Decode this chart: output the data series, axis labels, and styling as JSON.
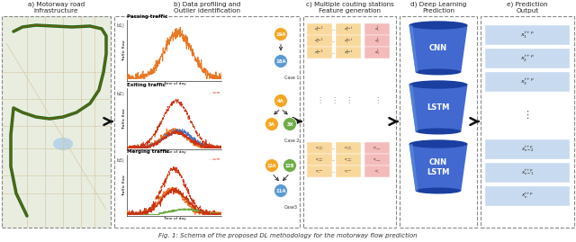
{
  "title": "Fig. 1: Schema of the proposed DL methodology for the motorway flow prediction",
  "panel_titles": [
    "a) Motorway road\ninfrastructure",
    "b) Data profiling and\nOutlier identification",
    "c) Multiple couting stations\nFeature generation",
    "d) Deep Learning\nPrediction",
    "e) Prediction\nOutput"
  ],
  "traffic_labels": [
    "Passing traffic",
    "Exiting traffic",
    "Merging traffic"
  ],
  "node_labels_case1": [
    "19A",
    "18A"
  ],
  "node_labels_case2": [
    "4A",
    "3A",
    "3X"
  ],
  "node_labels_case3": [
    "12A",
    "12B",
    "11A"
  ],
  "node_color_orange": "#F5A623",
  "node_color_blue": "#5B9BD5",
  "node_color_green": "#70AD47",
  "dl_labels": [
    "CNN",
    "LSTM",
    "CNN\nLSTM"
  ],
  "dl_color_light": "#4472C4",
  "dl_color_dark": "#2355A0",
  "feature_col_yellow": "#F9D89C",
  "feature_col_pink": "#F4BBBB",
  "output_color": "#C8DAEF",
  "map_bg": "#E4EED4",
  "map_water": "#A8D0E6",
  "map_road": "#E8C878",
  "orange_line": "#E87722",
  "blue_line": "#4472C4",
  "green_line": "#70AD47",
  "red_line": "#CC3311",
  "sum_line": "#CC3311",
  "text_dark": "#222222",
  "text_gray": "#555555",
  "arrow_color": "#111111",
  "dashed_color": "#888888"
}
